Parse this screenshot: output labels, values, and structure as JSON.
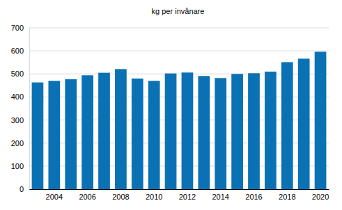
{
  "chart_data": {
    "type": "bar",
    "title": "kg per invånare",
    "categories": [
      null,
      "2004",
      null,
      "2006",
      null,
      "2008",
      null,
      "2010",
      null,
      "2012",
      null,
      "2014",
      null,
      "2016",
      null,
      "2018",
      null,
      "2020"
    ],
    "values": [
      463,
      470,
      477,
      494,
      505,
      521,
      480,
      470,
      502,
      506,
      491,
      482,
      500,
      503,
      510,
      551,
      566,
      596
    ],
    "color": "#0a72b4",
    "ylim": [
      0,
      700
    ],
    "yticks": [
      0,
      100,
      200,
      300,
      400,
      500,
      600,
      700
    ],
    "grid": true
  }
}
